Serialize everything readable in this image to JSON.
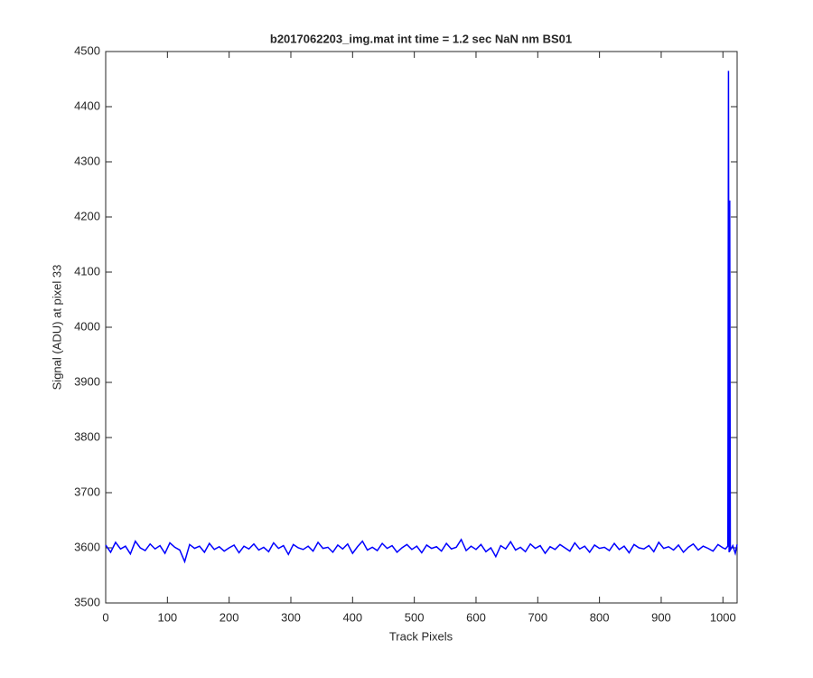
{
  "chart_data": {
    "type": "line",
    "title": "b2017062203_img.mat int time = 1.2 sec  NaN nm BS01",
    "xlabel": "Track Pixels",
    "ylabel": "Signal (ADU) at pixel 33",
    "x": [
      0,
      8,
      16,
      24,
      32,
      40,
      48,
      56,
      64,
      72,
      80,
      88,
      96,
      104,
      112,
      120,
      128,
      136,
      144,
      152,
      160,
      168,
      176,
      184,
      192,
      200,
      208,
      216,
      224,
      232,
      240,
      248,
      256,
      264,
      272,
      280,
      288,
      296,
      304,
      312,
      320,
      328,
      336,
      344,
      352,
      360,
      368,
      376,
      384,
      392,
      400,
      408,
      416,
      424,
      432,
      440,
      448,
      456,
      464,
      472,
      480,
      488,
      496,
      504,
      512,
      520,
      528,
      536,
      544,
      552,
      560,
      568,
      576,
      584,
      592,
      600,
      608,
      616,
      624,
      632,
      640,
      648,
      656,
      664,
      672,
      680,
      688,
      696,
      704,
      712,
      720,
      728,
      736,
      744,
      752,
      760,
      768,
      776,
      784,
      792,
      800,
      808,
      816,
      824,
      832,
      840,
      848,
      856,
      864,
      872,
      880,
      888,
      896,
      904,
      912,
      920,
      928,
      936,
      944,
      952,
      960,
      968,
      976,
      984,
      992,
      1000,
      1004,
      1008,
      1009,
      1010,
      1011,
      1012,
      1016,
      1020,
      1023
    ],
    "series": [
      {
        "name": "Signal",
        "color": "#0000ff",
        "values": [
          3605,
          3592,
          3610,
          3598,
          3603,
          3589,
          3612,
          3600,
          3595,
          3607,
          3598,
          3604,
          3590,
          3609,
          3601,
          3596,
          3575,
          3606,
          3599,
          3603,
          3592,
          3608,
          3597,
          3602,
          3594,
          3600,
          3605,
          3591,
          3603,
          3598,
          3607,
          3596,
          3601,
          3593,
          3609,
          3599,
          3604,
          3588,
          3606,
          3600,
          3597,
          3603,
          3594,
          3610,
          3599,
          3601,
          3592,
          3605,
          3598,
          3607,
          3590,
          3602,
          3612,
          3596,
          3601,
          3595,
          3608,
          3599,
          3604,
          3592,
          3600,
          3606,
          3597,
          3603,
          3591,
          3605,
          3599,
          3602,
          3594,
          3608,
          3598,
          3601,
          3615,
          3595,
          3603,
          3597,
          3606,
          3593,
          3600,
          3584,
          3604,
          3598,
          3611,
          3596,
          3601,
          3593,
          3607,
          3599,
          3604,
          3590,
          3602,
          3597,
          3606,
          3600,
          3594,
          3609,
          3598,
          3603,
          3592,
          3605,
          3599,
          3601,
          3595,
          3608,
          3597,
          3603,
          3591,
          3606,
          3600,
          3598,
          3604,
          3593,
          3610,
          3599,
          3602,
          3596,
          3605,
          3592,
          3601,
          3607,
          3596,
          3603,
          3599,
          3594,
          3606,
          3600,
          3598,
          3603,
          4465,
          3592,
          4230,
          3596,
          3604,
          3590,
          3606
        ]
      }
    ],
    "xlim": [
      0,
      1023
    ],
    "ylim": [
      3500,
      4500
    ],
    "xticks": [
      0,
      100,
      200,
      300,
      400,
      500,
      600,
      700,
      800,
      900,
      1000
    ],
    "yticks": [
      3500,
      3600,
      3700,
      3800,
      3900,
      4000,
      4100,
      4200,
      4300,
      4400,
      4500
    ]
  }
}
